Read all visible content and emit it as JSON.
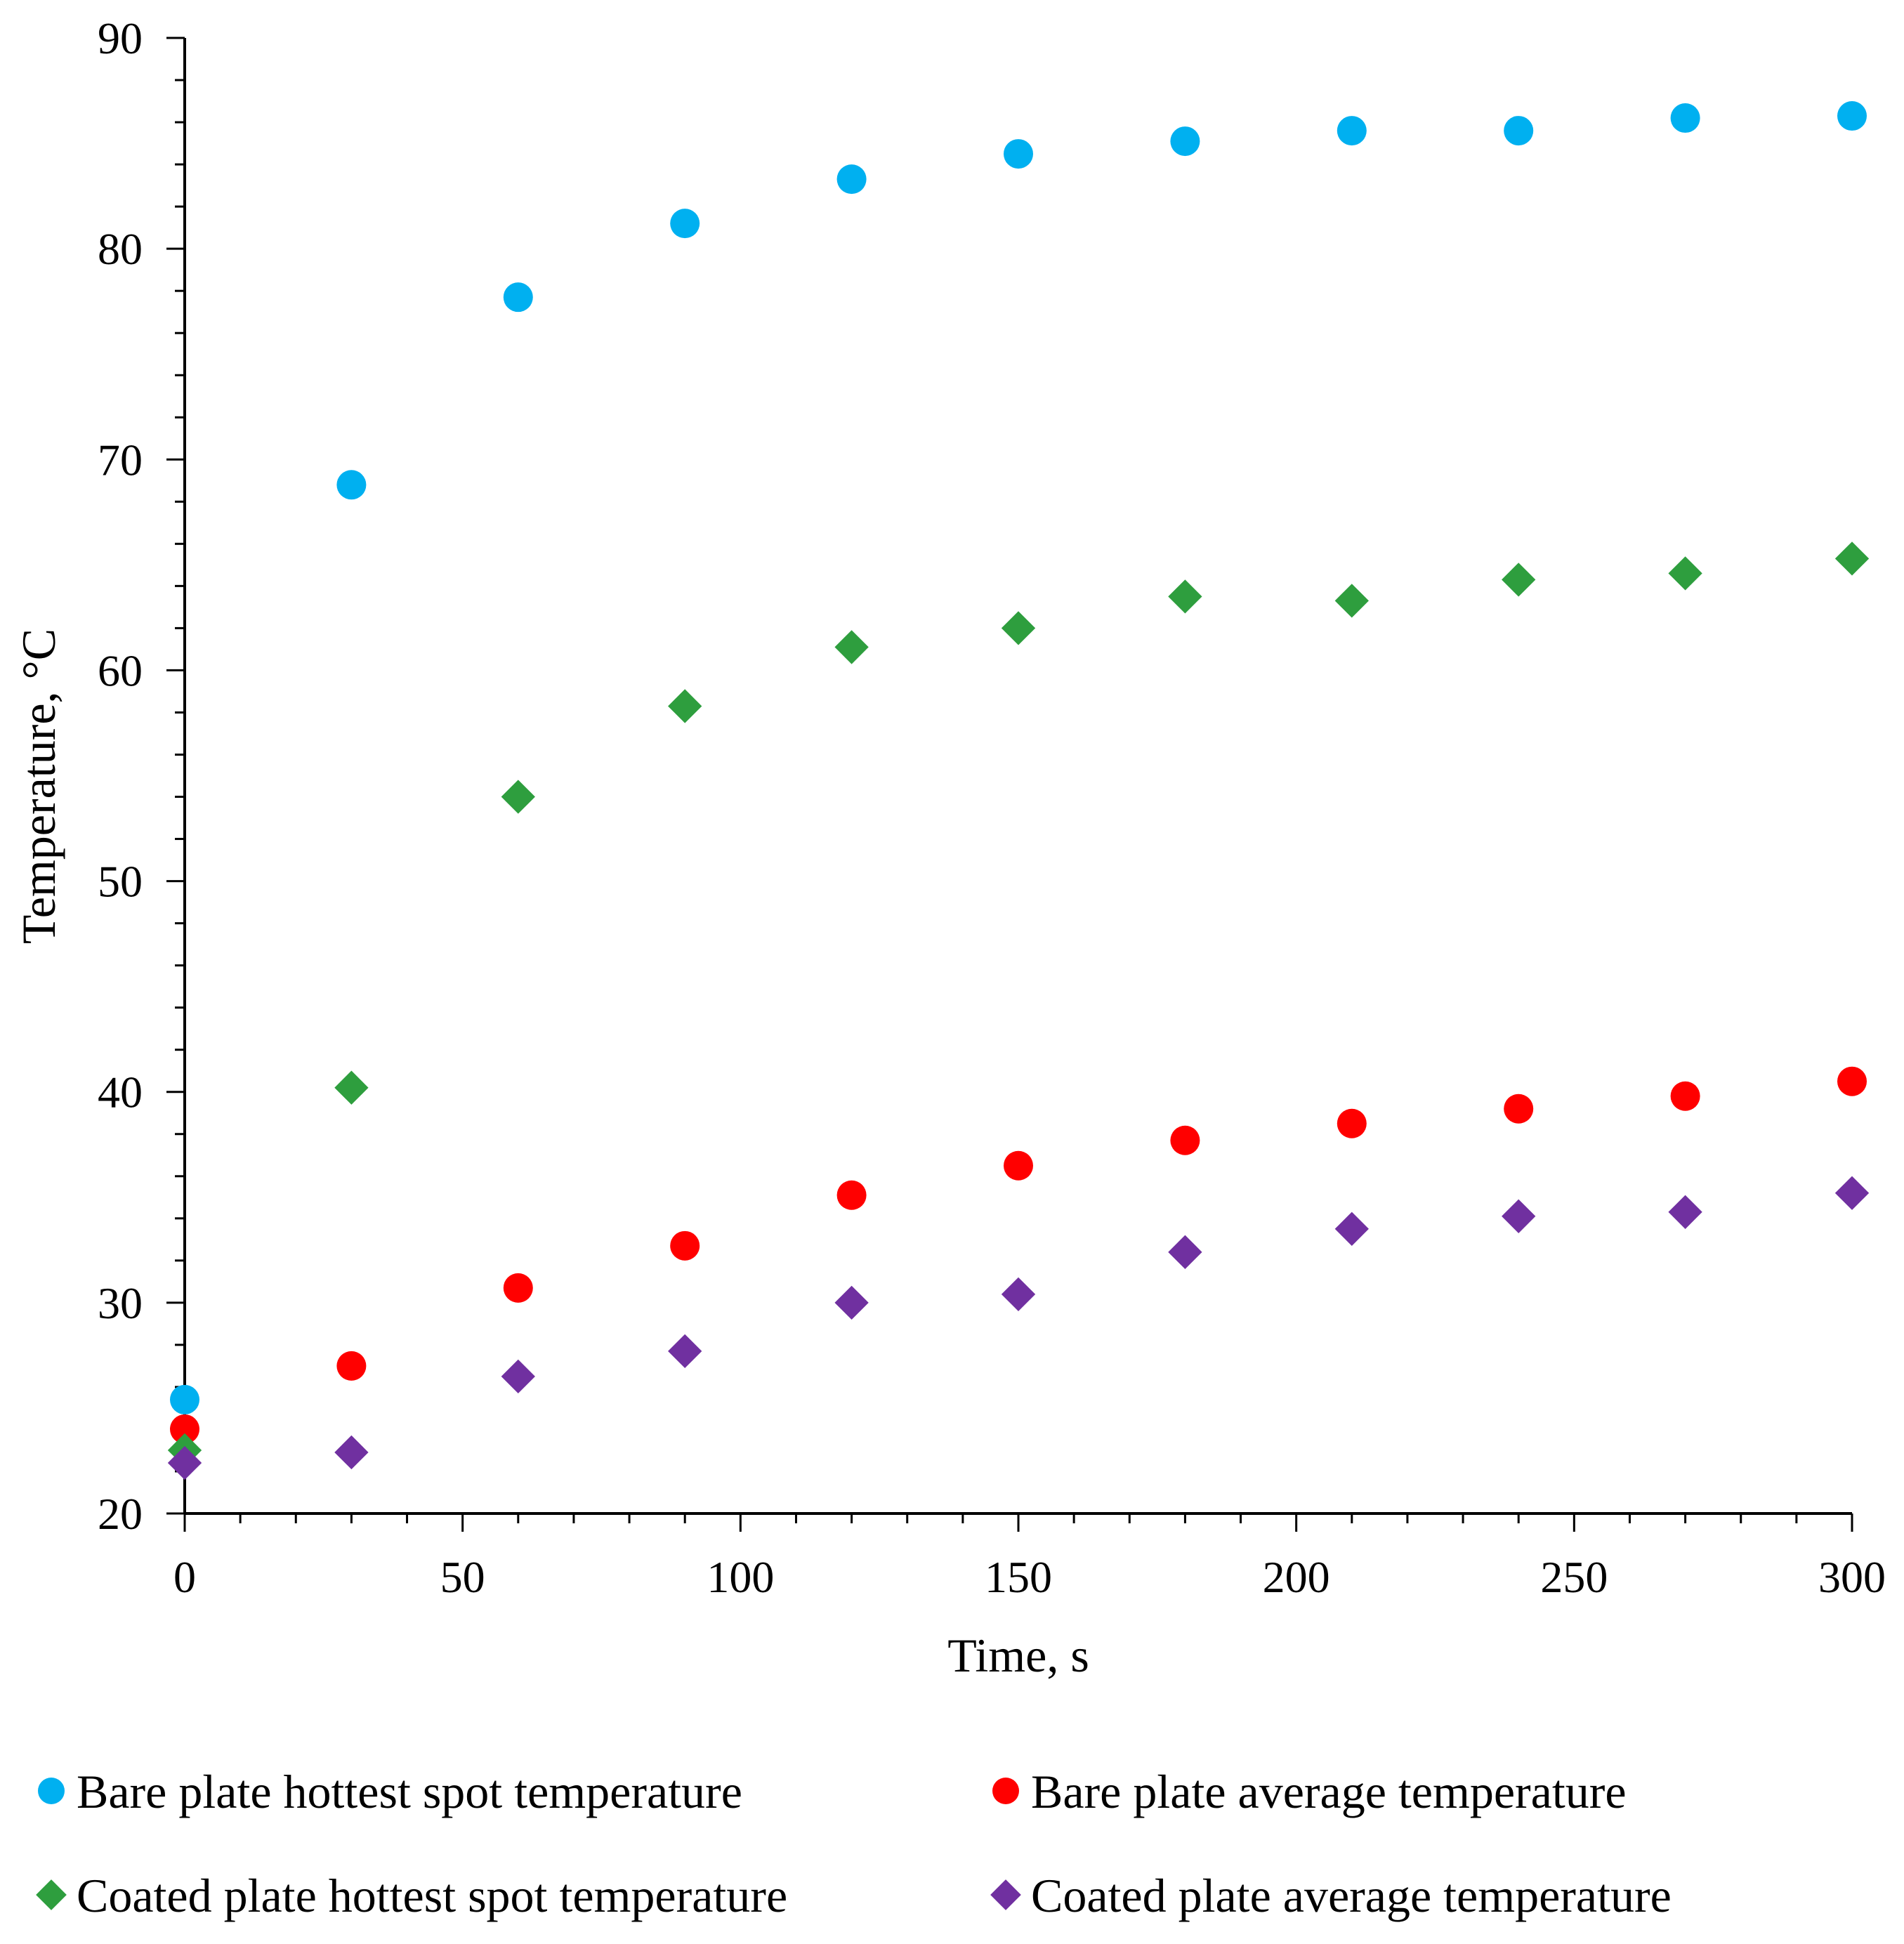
{
  "chart_data": {
    "type": "scatter",
    "title": "",
    "xlabel": "Time, s",
    "ylabel": "Temperature, °C",
    "xlim": [
      0,
      300
    ],
    "ylim": [
      20,
      90
    ],
    "xticks": [
      0,
      50,
      100,
      150,
      200,
      250,
      300
    ],
    "yticks": [
      20,
      30,
      40,
      50,
      60,
      70,
      80,
      90
    ],
    "grid": false,
    "legend_position": "bottom",
    "x": [
      0,
      30,
      60,
      90,
      120,
      150,
      180,
      210,
      240,
      270,
      300
    ],
    "series": [
      {
        "name": "Bare plate hottest spot temperature",
        "marker": "circle",
        "color": "#00B0F0",
        "values": [
          25.4,
          68.8,
          77.7,
          81.2,
          83.3,
          84.5,
          85.1,
          85.6,
          85.6,
          86.2,
          86.3
        ]
      },
      {
        "name": "Bare plate average temperature",
        "marker": "circle",
        "color": "#FF0000",
        "values": [
          24.0,
          27.0,
          30.7,
          32.7,
          35.1,
          36.5,
          37.7,
          38.5,
          39.2,
          39.8,
          40.5
        ]
      },
      {
        "name": "Coated plate hottest spot temperature",
        "marker": "diamond",
        "color": "#2E9E3E",
        "values": [
          23.0,
          40.2,
          54.0,
          58.3,
          61.1,
          62.0,
          63.5,
          63.3,
          64.3,
          64.6,
          65.3
        ]
      },
      {
        "name": "Coated plate average temperature",
        "marker": "diamond",
        "color": "#7030A0",
        "values": [
          22.4,
          22.9,
          26.5,
          27.7,
          30.0,
          30.4,
          32.4,
          33.5,
          34.1,
          34.3,
          35.2
        ]
      }
    ]
  }
}
